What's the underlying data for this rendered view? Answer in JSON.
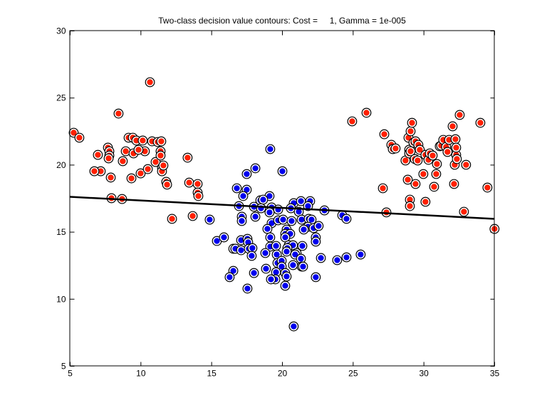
{
  "chart_data": {
    "type": "scatter",
    "title": "Two-class decision value contours: Cost =     1, Gamma = 1e-005",
    "xlabel": "",
    "ylabel": "",
    "xlim": [
      5,
      35
    ],
    "ylim": [
      5,
      30
    ],
    "xticks": [
      5,
      10,
      15,
      20,
      25,
      30,
      35
    ],
    "yticks": [
      5,
      10,
      15,
      20,
      25,
      30
    ],
    "grid": false,
    "colors": {
      "class1": "#ff2000",
      "class2": "#0000ee",
      "outline": "#000000",
      "boundary": "#000000"
    },
    "decision_boundary": {
      "x": [
        5,
        35
      ],
      "y": [
        17.63,
        15.99
      ]
    },
    "series": [
      {
        "name": "class-red",
        "points": [
          [
            5.25,
            22.41
          ],
          [
            5.65,
            22.04
          ],
          [
            6.96,
            20.76
          ],
          [
            7.16,
            19.54
          ],
          [
            6.71,
            19.54
          ],
          [
            7.67,
            21.3
          ],
          [
            7.77,
            21.03
          ],
          [
            7.77,
            20.71
          ],
          [
            7.72,
            20.5
          ],
          [
            7.87,
            19.07
          ],
          [
            7.92,
            17.53
          ],
          [
            8.42,
            23.84
          ],
          [
            8.67,
            17.47
          ],
          [
            8.72,
            20.29
          ],
          [
            8.93,
            21.03
          ],
          [
            9.13,
            22.04
          ],
          [
            9.43,
            22.04
          ],
          [
            9.48,
            20.87
          ],
          [
            9.68,
            21.83
          ],
          [
            9.98,
            19.38
          ],
          [
            10.13,
            21.83
          ],
          [
            10.28,
            21.03
          ],
          [
            10.49,
            19.7
          ],
          [
            10.79,
            21.77
          ],
          [
            11.04,
            20.23
          ],
          [
            11.19,
            21.72
          ],
          [
            11.39,
            21.03
          ],
          [
            11.44,
            21.77
          ],
          [
            11.49,
            19.81
          ],
          [
            11.49,
            19.54
          ],
          [
            11.39,
            20.71
          ],
          [
            10.64,
            26.18
          ],
          [
            11.59,
            19.97
          ],
          [
            11.79,
            18.75
          ],
          [
            11.85,
            18.54
          ],
          [
            12.2,
            15.99
          ],
          [
            13.3,
            20.55
          ],
          [
            13.41,
            18.69
          ],
          [
            13.66,
            16.2
          ],
          [
            14.01,
            18.59
          ],
          [
            14.01,
            17.95
          ],
          [
            14.06,
            17.69
          ],
          [
            9.83,
            21.14
          ],
          [
            9.33,
            19.01
          ],
          [
            24.93,
            23.26
          ],
          [
            25.94,
            23.9
          ],
          [
            27.1,
            18.27
          ],
          [
            27.2,
            22.3
          ],
          [
            27.35,
            16.47
          ],
          [
            27.7,
            21.51
          ],
          [
            27.8,
            21.19
          ],
          [
            28.0,
            21.24
          ],
          [
            28.7,
            20.34
          ],
          [
            28.86,
            18.91
          ],
          [
            28.91,
            22.04
          ],
          [
            28.96,
            21.14
          ],
          [
            28.96,
            20.87
          ],
          [
            29.01,
            17.42
          ],
          [
            29.01,
            16.94
          ],
          [
            29.06,
            22.52
          ],
          [
            29.06,
            21.03
          ],
          [
            29.16,
            23.15
          ],
          [
            29.26,
            21.67
          ],
          [
            29.41,
            21.77
          ],
          [
            29.36,
            20.45
          ],
          [
            29.41,
            18.59
          ],
          [
            29.61,
            21.51
          ],
          [
            29.56,
            20.34
          ],
          [
            29.71,
            21.14
          ],
          [
            29.96,
            19.33
          ],
          [
            30.11,
            20.76
          ],
          [
            30.11,
            17.26
          ],
          [
            30.32,
            20.39
          ],
          [
            30.42,
            20.87
          ],
          [
            30.62,
            20.71
          ],
          [
            30.72,
            18.38
          ],
          [
            30.87,
            19.33
          ],
          [
            30.92,
            20.08
          ],
          [
            31.12,
            21.4
          ],
          [
            31.22,
            21.45
          ],
          [
            31.37,
            21.88
          ],
          [
            31.57,
            21.35
          ],
          [
            31.67,
            20.98
          ],
          [
            31.78,
            21.88
          ],
          [
            32.03,
            22.89
          ],
          [
            32.13,
            18.59
          ],
          [
            32.18,
            20.02
          ],
          [
            32.28,
            20.76
          ],
          [
            32.33,
            20.45
          ],
          [
            32.23,
            21.93
          ],
          [
            32.28,
            21.3
          ],
          [
            32.53,
            23.74
          ],
          [
            32.83,
            16.52
          ],
          [
            32.98,
            20.02
          ],
          [
            33.99,
            23.15
          ],
          [
            34.49,
            18.32
          ],
          [
            34.99,
            15.24
          ]
        ]
      },
      {
        "name": "class-blue",
        "points": [
          [
            19.14,
            21.19
          ],
          [
            18.09,
            19.76
          ],
          [
            17.48,
            19.33
          ],
          [
            20.0,
            19.54
          ],
          [
            16.78,
            18.27
          ],
          [
            17.48,
            18.16
          ],
          [
            17.23,
            17.69
          ],
          [
            19.09,
            17.69
          ],
          [
            18.44,
            17.37
          ],
          [
            18.64,
            17.42
          ],
          [
            20.8,
            17.16
          ],
          [
            21.31,
            17.31
          ],
          [
            21.96,
            17.31
          ],
          [
            21.81,
            16.94
          ],
          [
            16.93,
            16.94
          ],
          [
            17.99,
            16.89
          ],
          [
            18.49,
            16.78
          ],
          [
            19.24,
            16.84
          ],
          [
            19.7,
            16.68
          ],
          [
            20.6,
            16.78
          ],
          [
            21.16,
            16.52
          ],
          [
            22.97,
            16.62
          ],
          [
            24.23,
            16.25
          ],
          [
            24.53,
            15.99
          ],
          [
            19.09,
            16.47
          ],
          [
            17.13,
            16.15
          ],
          [
            17.13,
            15.83
          ],
          [
            18.09,
            16.15
          ],
          [
            19.24,
            15.67
          ],
          [
            19.7,
            15.88
          ],
          [
            20.05,
            15.93
          ],
          [
            20.65,
            15.83
          ],
          [
            21.36,
            15.93
          ],
          [
            21.86,
            15.99
          ],
          [
            22.06,
            15.93
          ],
          [
            21.81,
            15.4
          ],
          [
            22.21,
            15.3
          ],
          [
            22.56,
            15.46
          ],
          [
            18.94,
            15.24
          ],
          [
            20.3,
            15.19
          ],
          [
            21.51,
            15.19
          ],
          [
            14.86,
            15.93
          ],
          [
            15.37,
            14.34
          ],
          [
            15.87,
            14.61
          ],
          [
            17.08,
            14.4
          ],
          [
            17.53,
            14.5
          ],
          [
            17.58,
            14.24
          ],
          [
            16.53,
            13.76
          ],
          [
            16.68,
            13.76
          ],
          [
            17.08,
            13.65
          ],
          [
            17.63,
            13.76
          ],
          [
            17.88,
            13.81
          ],
          [
            17.83,
            13.23
          ],
          [
            19.14,
            14.61
          ],
          [
            19.14,
            13.92
          ],
          [
            19.55,
            13.97
          ],
          [
            18.79,
            13.44
          ],
          [
            19.6,
            13.33
          ],
          [
            20.2,
            14.87
          ],
          [
            20.55,
            14.87
          ],
          [
            20.2,
            14.61
          ],
          [
            20.45,
            14.02
          ],
          [
            20.75,
            14.02
          ],
          [
            20.35,
            13.81
          ],
          [
            20.3,
            13.55
          ],
          [
            21.41,
            13.97
          ],
          [
            21.0,
            13.44
          ],
          [
            20.9,
            13.33
          ],
          [
            21.31,
            13.02
          ],
          [
            21.36,
            12.43
          ],
          [
            21.46,
            12.43
          ],
          [
            20.75,
            12.54
          ],
          [
            19.65,
            12.7
          ],
          [
            19.95,
            12.86
          ],
          [
            19.95,
            12.43
          ],
          [
            18.84,
            12.27
          ],
          [
            19.55,
            12.01
          ],
          [
            20.2,
            11.95
          ],
          [
            20.3,
            11.69
          ],
          [
            19.5,
            11.48
          ],
          [
            19.19,
            11.48
          ],
          [
            20.2,
            11.0
          ],
          [
            17.99,
            11.95
          ],
          [
            16.53,
            12.11
          ],
          [
            16.27,
            11.64
          ],
          [
            17.53,
            10.79
          ],
          [
            20.8,
            7.97
          ],
          [
            22.36,
            14.61
          ],
          [
            22.36,
            14.29
          ],
          [
            22.72,
            13.07
          ],
          [
            23.87,
            12.91
          ],
          [
            24.53,
            13.12
          ],
          [
            25.53,
            13.33
          ],
          [
            22.36,
            11.64
          ]
        ]
      }
    ]
  }
}
